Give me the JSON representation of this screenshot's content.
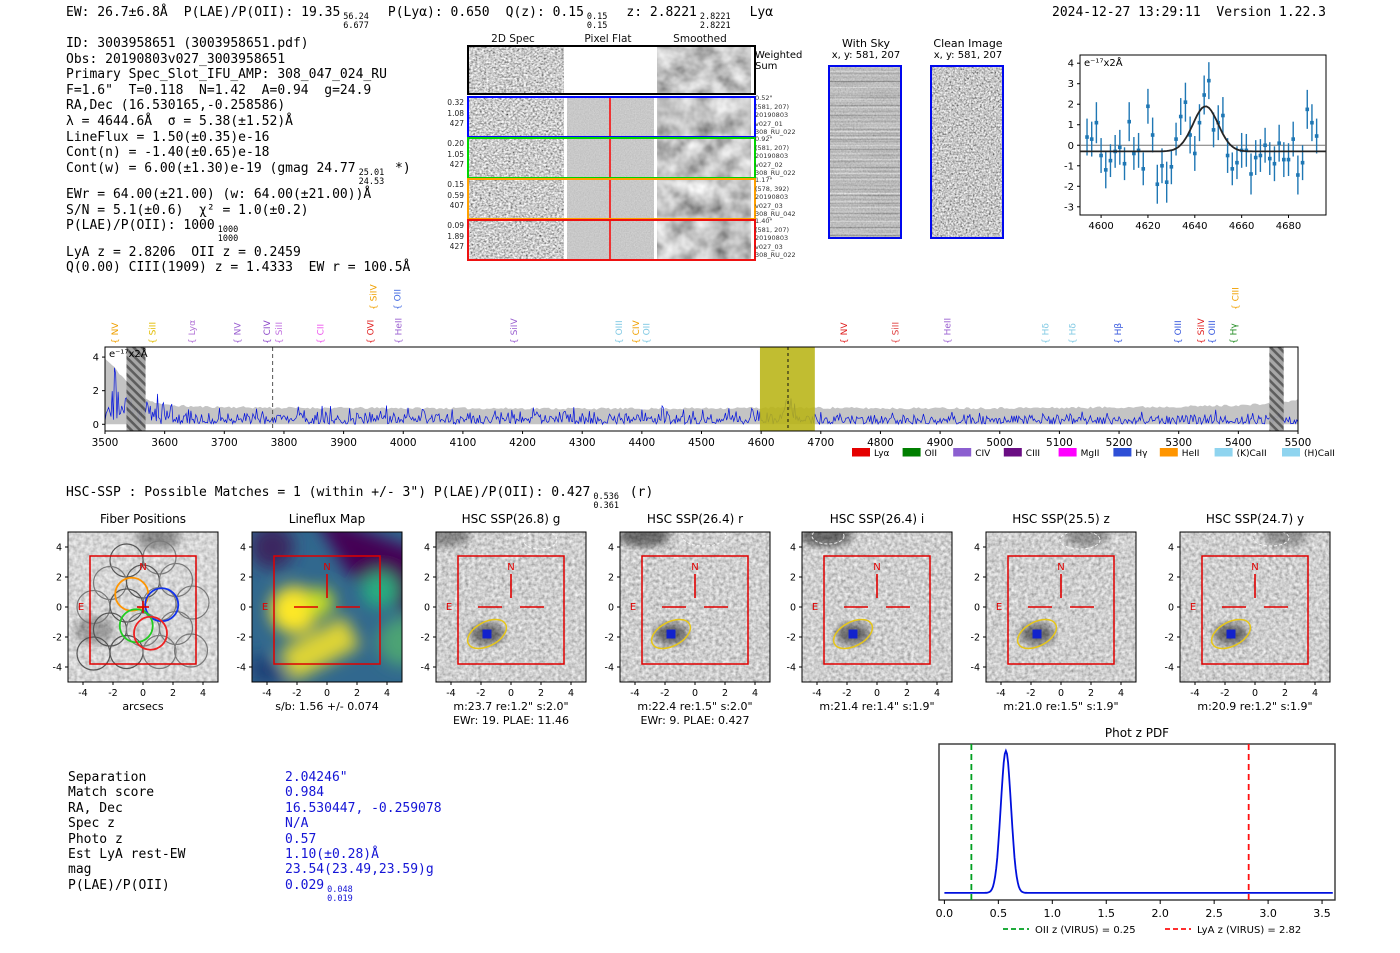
{
  "header": {
    "segs": [
      {
        "t": "EW: 26.7±6.8Å"
      },
      {
        "t": "P(LAE)/P(OII): 19.35",
        "hi": "56.24",
        "lo": "6.677"
      },
      {
        "t": "P(Lyα): 0.650"
      },
      {
        "t": "Q(z): 0.15",
        "hi": "0.15",
        "lo": "0.15"
      },
      {
        "t": "z: 2.8221",
        "hi": "2.8221",
        "lo": "2.8221"
      },
      {
        "t": "Lyα"
      }
    ],
    "datetime": "2024-12-27 13:29:11",
    "version": "Version 1.22.3"
  },
  "info_lines": [
    {
      "text": "ID: 3003958651 (3003958651.pdf)"
    },
    {
      "text": "Obs: 20190803v027_3003958651"
    },
    {
      "text": "Primary Spec_Slot_IFU_AMP: 308_047_024_RU"
    },
    {
      "text": "F=1.6\"  T=0.118  N=1.42  A=0.94  g=24.9"
    },
    {
      "text": "RA,Dec (16.530165,-0.258586)"
    },
    {
      "text": "λ = 4644.6Å  σ = 5.38(±1.52)Å"
    },
    {
      "text": "LineFlux = 1.50(±0.35)e-16"
    },
    {
      "text": "Cont(n) = -1.40(±0.65)e-18"
    },
    {
      "text": "Cont(w) = 6.00(±1.30)e-19 (gmag 24.77",
      "hi": "25.01",
      "lo": "24.53",
      "text2": " *)"
    },
    {
      "text": "EWr = 64.00(±21.00) (w: 64.00(±21.00))Å"
    },
    {
      "text": "S/N = 5.1(±0.6)  χ² = 1.0(±0.2)"
    },
    {
      "text": "P(LAE)/P(OII): 1000",
      "hi": "1000",
      "lo": "1000"
    },
    {
      "text": "LyA z = 2.8206  OII z = 0.2459"
    },
    {
      "text": "Q(0.00) CIII(1909) z = 1.4333  EW r = 100.5Å"
    }
  ],
  "spec2d": {
    "col_headers": [
      "2D Spec",
      "Pixel Flat",
      "Smoothed"
    ],
    "weighted_label": [
      "Weighted",
      "Sum"
    ],
    "rows": [
      {
        "border": "#0008ff",
        "left": [
          "0.32",
          "1.08",
          "427"
        ],
        "right": [
          "0.52\"",
          "(581, 207)",
          "20190803",
          "v027_01",
          "308_RU_022"
        ]
      },
      {
        "border": "#00d400",
        "left": [
          "0.20",
          "1.05",
          "427"
        ],
        "right": [
          "0.92\"",
          "(581, 207)",
          "20190803",
          "v027_02",
          "308_RU_022"
        ]
      },
      {
        "border": "#ffa000",
        "left": [
          "0.15",
          "0.59",
          "407"
        ],
        "right": [
          "1.17\"",
          "(578, 392)",
          "20190803",
          "v027_03",
          "308_RU_042"
        ]
      },
      {
        "border": "#ee1111",
        "left": [
          "0.09",
          "1.89",
          "427"
        ],
        "right": [
          "1.40\"",
          "(581, 207)",
          "20190803",
          "v027_03",
          "308_RU_022"
        ]
      }
    ]
  },
  "cutouts": {
    "with_sky": {
      "title": "With Sky",
      "subtitle": "x, y: 581, 207"
    },
    "clean": {
      "title": "Clean Image",
      "subtitle": "x, y: 581, 207"
    }
  },
  "hsc_line": {
    "t1": "HSC-SSP : Possible Matches = 1 (within +/- 3\")  P(LAE)/P(OII): 0.427",
    "hi": "0.536",
    "lo": "0.361",
    "t2": " (r)"
  },
  "panel_row": {
    "yticks": [
      4,
      2,
      0,
      -2,
      -4
    ],
    "xticks": [
      -4,
      -2,
      0,
      2,
      4
    ],
    "compass_n": "N",
    "compass_e": "E",
    "panels": [
      {
        "title": "Fiber Positions",
        "caption": "arcsecs",
        "kind": "fiber"
      },
      {
        "title": "Lineflux Map",
        "caption": "s/b: 1.56 +/- 0.074",
        "kind": "flux"
      },
      {
        "title": "HSC SSP(26.8) g",
        "caption": "m:23.7 re:1.2\" s:2.0\"",
        "caption2": "EWr: 19. PLAE: 11.46",
        "kind": "hsc"
      },
      {
        "title": "HSC SSP(26.4) r",
        "caption": "m:22.4 re:1.5\" s:2.0\"",
        "caption2": "EWr: 9. PLAE: 0.427",
        "kind": "hsc"
      },
      {
        "title": "HSC SSP(26.4) i",
        "caption": "m:21.4 re:1.4\" s:1.9\"",
        "kind": "hsc"
      },
      {
        "title": "HSC SSP(25.5) z",
        "caption": "m:21.0 re:1.5\" s:1.9\"",
        "kind": "hsc"
      },
      {
        "title": "HSC SSP(24.7) y",
        "caption": "m:20.9 re:1.2\" s:1.9\"",
        "kind": "hsc"
      }
    ]
  },
  "match_table": {
    "rows": [
      {
        "label": "Separation",
        "value": "2.04246\""
      },
      {
        "label": "Match score",
        "value": "0.984"
      },
      {
        "label": "RA, Dec",
        "value": "16.530447, -0.259078"
      },
      {
        "label": "Spec z",
        "value": "N/A"
      },
      {
        "label": "Photo z",
        "value": "0.57"
      },
      {
        "label": "Est LyA rest-EW",
        "value": "1.10(±0.28)Å"
      },
      {
        "label": "mag",
        "value": "23.54(23.49,23.59)g"
      },
      {
        "label": "P(LAE)/P(OII)",
        "value": "0.029",
        "hi": "0.048",
        "lo": "0.019"
      }
    ]
  },
  "chart_data": [
    {
      "id": "zoom_spec",
      "type": "scatter",
      "annotation": "e⁻¹⁷x2Å",
      "xlim": [
        4591,
        4696
      ],
      "ylim": [
        -3.4,
        4.4
      ],
      "xticks": [
        4600,
        4620,
        4640,
        4660,
        4680
      ],
      "yticks": [
        -3,
        -2,
        -1,
        0,
        1,
        2,
        3,
        4
      ],
      "points": [
        [
          4594,
          0.4,
          0.9
        ],
        [
          4596,
          0.3,
          0.85
        ],
        [
          4598,
          1.1,
          1.0
        ],
        [
          4600,
          -0.5,
          0.85
        ],
        [
          4602,
          -1.2,
          0.9
        ],
        [
          4604,
          -0.75,
          0.8
        ],
        [
          4606,
          -0.3,
          0.8
        ],
        [
          4608,
          -0.1,
          0.85
        ],
        [
          4610,
          -0.9,
          0.8
        ],
        [
          4612,
          1.15,
          0.95
        ],
        [
          4614,
          -0.4,
          0.8
        ],
        [
          4616,
          -0.25,
          0.85
        ],
        [
          4618,
          -1.15,
          0.8
        ],
        [
          4620,
          1.9,
          0.85
        ],
        [
          4622,
          0.5,
          0.85
        ],
        [
          4624,
          -1.9,
          0.95
        ],
        [
          4626,
          -1.0,
          0.85
        ],
        [
          4628,
          -1.8,
          1.0
        ],
        [
          4630,
          -1.05,
          0.85
        ],
        [
          4632,
          0.3,
          0.8
        ],
        [
          4634,
          1.4,
          0.9
        ],
        [
          4636,
          2.1,
          0.95
        ],
        [
          4638,
          0.5,
          0.9
        ],
        [
          4640,
          -0.4,
          0.85
        ],
        [
          4642,
          1.1,
          0.9
        ],
        [
          4644,
          2.45,
          0.95
        ],
        [
          4646,
          3.15,
          0.9
        ],
        [
          4648,
          0.75,
          0.85
        ],
        [
          4650,
          1.1,
          0.85
        ],
        [
          4652,
          1.45,
          0.9
        ],
        [
          4654,
          -0.5,
          0.85
        ],
        [
          4656,
          -1.15,
          0.8
        ],
        [
          4658,
          -0.85,
          0.8
        ],
        [
          4660,
          -0.25,
          0.85
        ],
        [
          4662,
          -0.25,
          0.8
        ],
        [
          4664,
          -1.4,
          1.0
        ],
        [
          4666,
          -0.6,
          0.85
        ],
        [
          4668,
          -0.5,
          0.8
        ],
        [
          4670,
          0.0,
          0.85
        ],
        [
          4672,
          -0.65,
          0.8
        ],
        [
          4674,
          -0.9,
          0.85
        ],
        [
          4676,
          0.1,
          0.9
        ],
        [
          4678,
          -0.7,
          0.85
        ],
        [
          4680,
          -0.7,
          0.8
        ],
        [
          4682,
          0.3,
          0.85
        ],
        [
          4684,
          -1.45,
          0.95
        ],
        [
          4686,
          -0.85,
          0.85
        ],
        [
          4688,
          1.75,
          0.95
        ],
        [
          4690,
          1.1,
          0.9
        ],
        [
          4692,
          0.45,
          0.85
        ]
      ],
      "fit": {
        "shape": "gaussian",
        "mu": 4644.6,
        "sigma": 5.38,
        "amp": 2.2,
        "baseline": -0.3
      },
      "colors": {
        "points": "#1f77b4",
        "fit": "#262626"
      }
    },
    {
      "id": "full_spec",
      "type": "line",
      "annotation": "e⁻¹⁷x2Å",
      "xlim": [
        3494,
        5512
      ],
      "ylim": [
        -0.4,
        4.6
      ],
      "xticks": [
        3500,
        3600,
        3700,
        3800,
        3900,
        4000,
        4100,
        4200,
        4300,
        4400,
        4500,
        4600,
        4700,
        4800,
        4900,
        5000,
        5100,
        5200,
        5300,
        5400,
        5500
      ],
      "yticks": [
        0,
        2,
        4
      ],
      "detection_band": {
        "x0": 4598,
        "x1": 4690,
        "color": "#b8b414"
      },
      "masked_bands": [
        {
          "x0": 3536,
          "x1": 3568
        },
        {
          "x0": 5452,
          "x1": 5476
        }
      ],
      "dashed_lines": [
        3781,
        4645
      ],
      "noise_seed": 11,
      "spectrum_color": "#0010dd",
      "noise_fill": "#c4c4c4",
      "envelope": [
        [
          3500,
          3.9
        ],
        [
          3515,
          3.4
        ],
        [
          3530,
          2.8
        ],
        [
          3550,
          2.0
        ],
        [
          3575,
          1.4
        ],
        [
          3600,
          1.15
        ],
        [
          3650,
          1.05
        ],
        [
          3800,
          0.98
        ],
        [
          4100,
          0.95
        ],
        [
          4400,
          0.93
        ],
        [
          4600,
          0.98
        ],
        [
          4650,
          1.0
        ],
        [
          4800,
          0.95
        ],
        [
          5100,
          0.98
        ],
        [
          5300,
          1.05
        ],
        [
          5420,
          1.15
        ],
        [
          5470,
          1.3
        ],
        [
          5500,
          1.45
        ]
      ],
      "line_labels": [
        {
          "l": "NV",
          "x": 3517,
          "c": "#f0a000",
          "r": 0
        },
        {
          "l": "SiII",
          "x": 3580,
          "c": "#e2bc00",
          "r": 0
        },
        {
          "l": "Lyα",
          "x": 3646,
          "c": "#b06fd6",
          "r": 0
        },
        {
          "l": "NV",
          "x": 3722,
          "c": "#9a5fd0",
          "r": 0
        },
        {
          "l": "CIV",
          "x": 3772,
          "c": "#8b46c8",
          "r": 0
        },
        {
          "l": "SiII",
          "x": 3792,
          "c": "#c06fe0",
          "r": 0
        },
        {
          "l": "CII",
          "x": 3861,
          "c": "#ee55ee",
          "r": 0
        },
        {
          "l": "SiIV",
          "x": 3950,
          "c": "#f0a000",
          "r": 1
        },
        {
          "l": "OVI",
          "x": 3945,
          "c": "#e02020",
          "r": 0
        },
        {
          "l": "OII",
          "x": 3990,
          "c": "#4169e1",
          "r": 1
        },
        {
          "l": "HeII",
          "x": 3992,
          "c": "#9a5fd0",
          "r": 0
        },
        {
          "l": "SiIV",
          "x": 4186,
          "c": "#9a5fd0",
          "r": 0
        },
        {
          "l": "OIII",
          "x": 4362,
          "c": "#7ec8e3",
          "r": 0
        },
        {
          "l": "CIV",
          "x": 4390,
          "c": "#f0a000",
          "r": 0
        },
        {
          "l": "OII",
          "x": 4408,
          "c": "#7ec8e3",
          "r": 0
        },
        {
          "l": "NV",
          "x": 4739,
          "c": "#e02020",
          "r": 0
        },
        {
          "l": "SiII",
          "x": 4825,
          "c": "#e04040",
          "r": 0
        },
        {
          "l": "HeII",
          "x": 4912,
          "c": "#9a5fd0",
          "r": 0
        },
        {
          "l": "Hδ",
          "x": 5077,
          "c": "#7ec8e3",
          "r": 0
        },
        {
          "l": "Hδ",
          "x": 5122,
          "c": "#7ec8e3",
          "r": 0
        },
        {
          "l": "Hβ",
          "x": 5198,
          "c": "#3355dd",
          "r": 0
        },
        {
          "l": "OIII",
          "x": 5299,
          "c": "#3355dd",
          "r": 0
        },
        {
          "l": "SiIV",
          "x": 5337,
          "c": "#e02020",
          "r": 0
        },
        {
          "l": "OIII",
          "x": 5356,
          "c": "#3355dd",
          "r": 0
        },
        {
          "l": "Hγ",
          "x": 5392,
          "c": "#1e8a1e",
          "r": 0
        },
        {
          "l": "CIII",
          "x": 5395,
          "c": "#f0a000",
          "r": 1
        }
      ],
      "legend": [
        {
          "label": "Lyα",
          "color": "#e50000"
        },
        {
          "label": "OII",
          "color": "#007f00"
        },
        {
          "label": "CIV",
          "color": "#8c5fd0"
        },
        {
          "label": "CIII",
          "color": "#6a0d83"
        },
        {
          "label": "MgII",
          "color": "#ff00ff"
        },
        {
          "label": "Hγ",
          "color": "#2e4fd6"
        },
        {
          "label": "HeII",
          "color": "#ff9500"
        },
        {
          "label": "(K)CaII",
          "color": "#8fd4ef"
        },
        {
          "label": "(H)CaII",
          "color": "#8fd4ef"
        }
      ]
    },
    {
      "id": "photz",
      "type": "line",
      "title": "Phot z PDF",
      "xlim": [
        -0.05,
        3.62
      ],
      "xticks": [
        0.0,
        0.5,
        1.0,
        1.5,
        2.0,
        2.5,
        3.0,
        3.5
      ],
      "curve": {
        "peak_z": 0.57,
        "sigma": 0.048,
        "baseline": 0.022,
        "peak_height": 1.0
      },
      "color": "#0010dd",
      "vlines": [
        {
          "x": 0.25,
          "color": "#00a020",
          "label": "OII z (VIRUS) = 0.25"
        },
        {
          "x": 2.82,
          "color": "#ff1111",
          "label": "LyA z (VIRUS) = 2.82"
        }
      ]
    }
  ]
}
